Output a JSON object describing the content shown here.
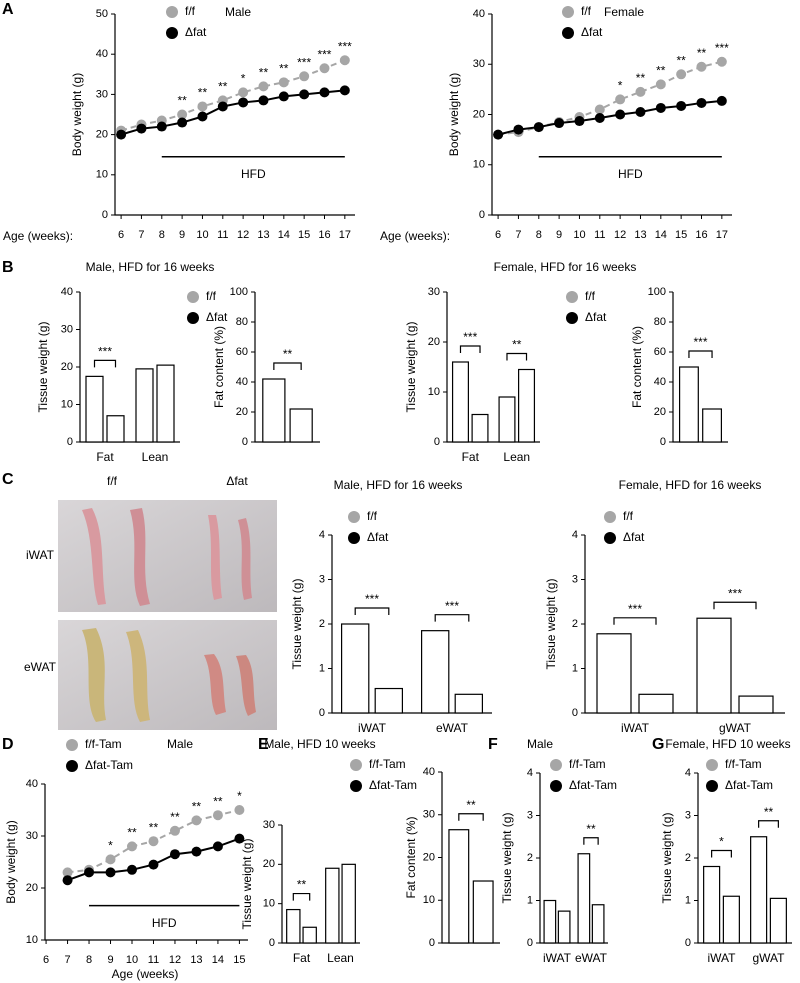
{
  "panel_letters": [
    "A",
    "B",
    "C",
    "D",
    "E",
    "F",
    "G"
  ],
  "photo": {
    "columns": [
      "f/f",
      "Δfat"
    ],
    "rows": [
      "iWAT",
      "eWAT"
    ]
  },
  "chart_data": [
    {
      "type": "line",
      "title": "Male",
      "ylabel": "Body weight (g)",
      "xlabel": "Age (weeks):",
      "x": [
        6,
        7,
        8,
        9,
        10,
        11,
        12,
        13,
        14,
        15,
        16,
        17
      ],
      "xlim": [
        5.7,
        17.5
      ],
      "xticks": [
        6,
        7,
        8,
        9,
        10,
        11,
        12,
        13,
        14,
        15,
        16,
        17
      ],
      "ylim": [
        0,
        50
      ],
      "yticks": [
        0,
        10,
        20,
        30,
        40,
        50
      ],
      "legend": true,
      "series": [
        {
          "name": "f/f",
          "color": "#a6a6a6",
          "linestyle": "dashed",
          "values": [
            21,
            22.5,
            23.5,
            25,
            27,
            28.5,
            30.5,
            32,
            33,
            34.5,
            36.5,
            38.5
          ]
        },
        {
          "name": "Δfat",
          "color": "#000000",
          "linestyle": "solid",
          "values": [
            20,
            21.5,
            22,
            23,
            24.5,
            27,
            28,
            28.5,
            29.5,
            30,
            30.5,
            31
          ]
        }
      ],
      "annotations": [
        null,
        null,
        null,
        "**",
        "**",
        "**",
        "*",
        "**",
        "**",
        "***",
        "***",
        "***"
      ],
      "hfd": {
        "label": "HFD",
        "x": [
          8,
          17
        ]
      }
    },
    {
      "type": "line",
      "title": "Female",
      "ylabel": "Body weight (g)",
      "xlabel": "Age (weeks):",
      "x": [
        6,
        7,
        8,
        9,
        10,
        11,
        12,
        13,
        14,
        15,
        16,
        17
      ],
      "xlim": [
        5.7,
        17.5
      ],
      "xticks": [
        6,
        7,
        8,
        9,
        10,
        11,
        12,
        13,
        14,
        15,
        16,
        17
      ],
      "ylim": [
        0,
        40
      ],
      "yticks": [
        0,
        10,
        20,
        30,
        40
      ],
      "legend": true,
      "series": [
        {
          "name": "f/f",
          "color": "#a6a6a6",
          "linestyle": "dashed",
          "values": [
            16,
            16.5,
            17.5,
            18.5,
            19.5,
            21,
            23,
            24.5,
            26,
            28,
            29.5,
            30.5
          ]
        },
        {
          "name": "Δfat",
          "color": "#000000",
          "linestyle": "solid",
          "values": [
            16,
            17,
            17.5,
            18.3,
            18.7,
            19.3,
            20,
            20.5,
            21.3,
            21.7,
            22.3,
            22.7
          ]
        }
      ],
      "annotations": [
        null,
        null,
        null,
        null,
        null,
        null,
        "*",
        "**",
        "**",
        "**",
        "**",
        "***"
      ],
      "hfd": {
        "label": "HFD",
        "x": [
          8,
          17
        ]
      }
    },
    {
      "type": "bar",
      "title": "Male, HFD for 16 weeks",
      "ylabel": "Tissue weight (g)",
      "categories": [
        "Fat",
        "Lean"
      ],
      "ylim": [
        0,
        40
      ],
      "yticks": [
        0,
        10,
        20,
        30,
        40
      ],
      "legend": true,
      "series": [
        {
          "name": "f/f",
          "color": "#a6a6a6",
          "values": [
            17.5,
            19.5
          ]
        },
        {
          "name": "Δfat",
          "color": "#000000",
          "values": [
            7,
            20.5
          ]
        }
      ],
      "annotations": [
        "***",
        null
      ]
    },
    {
      "type": "bar",
      "ylabel": "Fat content (%)",
      "categories": [
        null
      ],
      "ylim": [
        0,
        100
      ],
      "yticks": [
        0,
        20,
        40,
        60,
        80,
        100
      ],
      "legend": false,
      "series": [
        {
          "color": "#a6a6a6",
          "values": [
            42
          ]
        },
        {
          "color": "#000000",
          "values": [
            22
          ]
        }
      ],
      "annotations": [
        "**"
      ]
    },
    {
      "type": "bar",
      "title": "Female, HFD for 16 weeks",
      "ylabel": "Tissue weight (g)",
      "categories": [
        "Fat",
        "Lean"
      ],
      "ylim": [
        0,
        30
      ],
      "yticks": [
        0,
        10,
        20,
        30
      ],
      "legend": true,
      "series": [
        {
          "name": "f/f",
          "color": "#a6a6a6",
          "values": [
            16,
            9
          ]
        },
        {
          "name": "Δfat",
          "color": "#000000",
          "values": [
            5.5,
            14.5
          ]
        }
      ],
      "annotations": [
        "***",
        "**"
      ]
    },
    {
      "type": "bar",
      "ylabel": "Fat content (%)",
      "categories": [
        null
      ],
      "ylim": [
        0,
        100
      ],
      "yticks": [
        0,
        20,
        40,
        60,
        80,
        100
      ],
      "legend": false,
      "series": [
        {
          "color": "#a6a6a6",
          "values": [
            50
          ]
        },
        {
          "color": "#000000",
          "values": [
            22
          ]
        }
      ],
      "annotations": [
        "***"
      ]
    },
    {
      "type": "bar",
      "title": "Male, HFD for 16 weeks",
      "ylabel": "Tissue weight (g)",
      "categories": [
        "iWAT",
        "eWAT"
      ],
      "ylim": [
        0,
        4
      ],
      "yticks": [
        0,
        1,
        2,
        3,
        4
      ],
      "legend": true,
      "series": [
        {
          "name": "f/f",
          "color": "#a6a6a6",
          "values": [
            2.0,
            1.85
          ]
        },
        {
          "name": "Δfat",
          "color": "#000000",
          "values": [
            0.55,
            0.42
          ]
        }
      ],
      "annotations": [
        "***",
        "***"
      ]
    },
    {
      "type": "bar",
      "title": "Female, HFD for 16 weeks",
      "ylabel": "Tissue weight (g)",
      "categories": [
        "iWAT",
        "gWAT"
      ],
      "ylim": [
        0,
        4
      ],
      "yticks": [
        0,
        1,
        2,
        3,
        4
      ],
      "legend": true,
      "series": [
        {
          "name": "f/f",
          "color": "#a6a6a6",
          "values": [
            1.78,
            2.13
          ]
        },
        {
          "name": "Δfat",
          "color": "#000000",
          "values": [
            0.42,
            0.38
          ]
        }
      ],
      "annotations": [
        "***",
        "***"
      ]
    },
    {
      "type": "line",
      "title": "Male",
      "ylabel": "Body weight (g)",
      "xlabel": "Age (weeks)",
      "x": [
        7,
        8,
        9,
        10,
        11,
        12,
        13,
        14,
        15
      ],
      "xlim": [
        5.95,
        15.4
      ],
      "xticks": [
        6,
        7,
        8,
        9,
        10,
        11,
        12,
        13,
        14,
        15
      ],
      "ylim": [
        10,
        40
      ],
      "yticks": [
        10,
        20,
        30,
        40
      ],
      "legend": true,
      "series": [
        {
          "name": "f/f-Tam",
          "color": "#a6a6a6",
          "linestyle": "dashed",
          "values": [
            23,
            23.5,
            25.5,
            28,
            29,
            31,
            33,
            34,
            35
          ]
        },
        {
          "name": "Δfat-Tam",
          "color": "#000000",
          "linestyle": "solid",
          "values": [
            21.5,
            23,
            23,
            23.5,
            24.5,
            26.5,
            27,
            28,
            29.5
          ]
        }
      ],
      "annotations": [
        null,
        null,
        "*",
        "**",
        "**",
        "**",
        "**",
        "**",
        "*"
      ],
      "hfd": {
        "label": "HFD",
        "x": [
          8,
          15
        ]
      }
    },
    {
      "type": "bar",
      "title": "Male, HFD 10 weeks",
      "ylabel": "Tissue weight (g)",
      "categories": [
        "Fat",
        "Lean"
      ],
      "ylim": [
        0,
        30
      ],
      "yticks": [
        0,
        10,
        20,
        30
      ],
      "legend": true,
      "series": [
        {
          "name": "f/f-Tam",
          "color": "#a6a6a6",
          "values": [
            8.5,
            19
          ]
        },
        {
          "name": "Δfat-Tam",
          "color": "#000000",
          "values": [
            4,
            20
          ]
        }
      ],
      "annotations": [
        "**",
        null
      ]
    },
    {
      "type": "bar",
      "ylabel": "Fat content (%)",
      "categories": [
        null
      ],
      "ylim": [
        0,
        40
      ],
      "yticks": [
        0,
        10,
        20,
        30,
        40
      ],
      "legend": false,
      "series": [
        {
          "color": "#a6a6a6",
          "values": [
            26.5
          ]
        },
        {
          "color": "#000000",
          "values": [
            14.5
          ]
        }
      ],
      "annotations": [
        "**"
      ]
    },
    {
      "type": "bar",
      "title": "Male",
      "ylabel": "Tissue weight (g)",
      "categories": [
        "iWAT",
        "eWAT"
      ],
      "ylim": [
        0,
        4
      ],
      "yticks": [
        0,
        1,
        2,
        3,
        4
      ],
      "legend": true,
      "series": [
        {
          "name": "f/f-Tam",
          "color": "#a6a6a6",
          "values": [
            1.0,
            2.1
          ]
        },
        {
          "name": "Δfat-Tam",
          "color": "#000000",
          "values": [
            0.75,
            0.9
          ]
        }
      ],
      "annotations": [
        null,
        "**"
      ]
    },
    {
      "type": "bar",
      "title": "Female, HFD 10 weeks",
      "ylabel": "Tissue weight (g)",
      "categories": [
        "iWAT",
        "gWAT"
      ],
      "ylim": [
        0,
        4
      ],
      "yticks": [
        0,
        1,
        2,
        3,
        4
      ],
      "legend": true,
      "series": [
        {
          "name": "f/f-Tam",
          "color": "#a6a6a6",
          "values": [
            1.8,
            2.5
          ]
        },
        {
          "name": "Δfat-Tam",
          "color": "#000000",
          "values": [
            1.1,
            1.05
          ]
        }
      ],
      "annotations": [
        "*",
        "**"
      ]
    }
  ]
}
